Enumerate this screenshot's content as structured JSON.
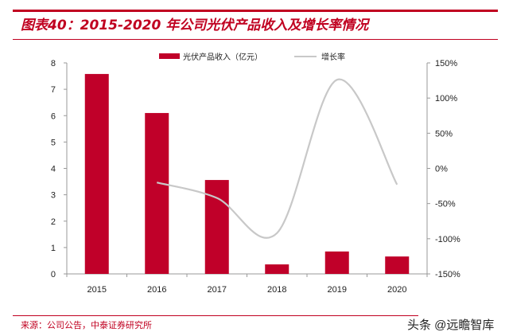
{
  "header": {
    "title": "图表40：2015-2020 年公司光伏产品收入及增长率情况"
  },
  "footer": {
    "source": "来源：公司公告，中泰证券研究所",
    "watermark": "头条 @远瞻智库"
  },
  "chart_data": {
    "type": "bar+line",
    "title": "",
    "categories": [
      "2015",
      "2016",
      "2017",
      "2018",
      "2019",
      "2020"
    ],
    "series": [
      {
        "name": "光伏产品收入（亿元）",
        "type": "bar",
        "axis": "left",
        "color": "#c00029",
        "values": [
          7.58,
          6.1,
          3.56,
          0.36,
          0.85,
          0.66
        ]
      },
      {
        "name": "增长率",
        "type": "line",
        "axis": "right",
        "color": "#c8c8c8",
        "values": [
          null,
          -20,
          -42,
          -92,
          126,
          -23
        ]
      }
    ],
    "left_axis": {
      "ylim": [
        0,
        8
      ],
      "ticks": [
        "0",
        "1",
        "2",
        "3",
        "4",
        "5",
        "6",
        "7",
        "8"
      ]
    },
    "right_axis": {
      "ylim": [
        -150,
        150
      ],
      "ticks": [
        "-150%",
        "-100%",
        "-50%",
        "0%",
        "50%",
        "100%",
        "150%"
      ]
    },
    "legend": "top-center",
    "grid": false
  }
}
